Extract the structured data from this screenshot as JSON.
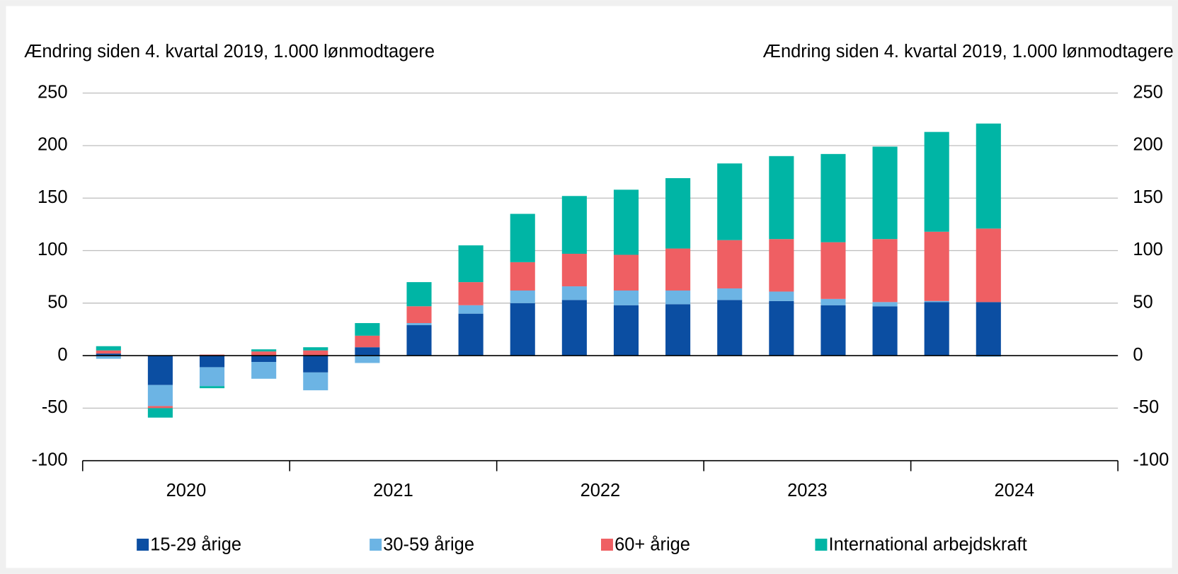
{
  "chart_data": {
    "type": "stacked_bar",
    "y_label": "Ændring siden 4. kvartal 2019, 1.000 lønmodtagere",
    "y2_label": "Ændring siden 4. kvartal 2019, 1.000 lønmodtagere",
    "categories": [
      null,
      null,
      null,
      null,
      null,
      null,
      null,
      null,
      null,
      null,
      null,
      null,
      null,
      null,
      null,
      null,
      null,
      null,
      null,
      null
    ],
    "x_groups": [
      "2020",
      "2021",
      "2022",
      "2023",
      "2024"
    ],
    "series": [
      {
        "name": "15-29 årige",
        "color": "#0b4ea2",
        "values": [
          2,
          -28,
          -11,
          -6,
          -16,
          8,
          29,
          40,
          50,
          53,
          48,
          49,
          53,
          52,
          48,
          47,
          51,
          51,
          null,
          null
        ]
      },
      {
        "name": "30-59 årige",
        "color": "#6cb4e4",
        "values": [
          -3,
          -20,
          -18,
          -16,
          -17,
          -7,
          2,
          8,
          12,
          13,
          14,
          13,
          11,
          9,
          6,
          4,
          1,
          -1,
          null,
          null
        ]
      },
      {
        "name": "60+ årige",
        "color": "#ef5f63",
        "values": [
          3,
          -2,
          1,
          4,
          5,
          11,
          16,
          22,
          27,
          31,
          34,
          40,
          46,
          50,
          54,
          60,
          66,
          70,
          null,
          null
        ]
      },
      {
        "name": "International arbejdskraft",
        "color": "#00b5a5",
        "values": [
          4,
          -9,
          -2,
          2,
          3,
          12,
          23,
          35,
          46,
          55,
          62,
          67,
          73,
          79,
          84,
          88,
          95,
          100,
          null,
          null
        ]
      }
    ],
    "ylim": [
      -100,
      250
    ],
    "yticks": [
      -100,
      -50,
      0,
      50,
      100,
      150,
      200,
      250
    ],
    "y2lim": [
      -100,
      250
    ],
    "y2ticks": [
      -100,
      -50,
      0,
      50,
      100,
      150,
      200,
      250
    ],
    "grid": true
  }
}
